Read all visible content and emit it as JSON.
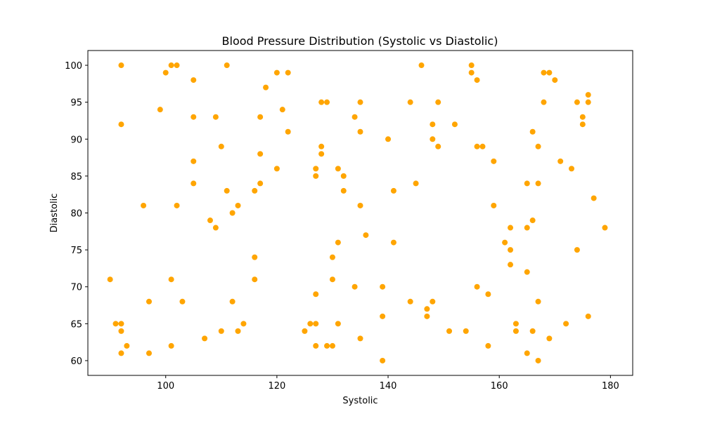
{
  "chart_data": {
    "type": "scatter",
    "title": "Blood Pressure Distribution (Systolic vs Diastolic)",
    "xlabel": "Systolic",
    "ylabel": "Diastolic",
    "xlim": [
      86,
      184
    ],
    "ylim": [
      58,
      102
    ],
    "xticks": [
      100,
      120,
      140,
      160,
      180
    ],
    "yticks": [
      60,
      65,
      70,
      75,
      80,
      85,
      90,
      95,
      100
    ],
    "grid": false,
    "marker_color": "#FFA500",
    "series": [
      {
        "points": [
          [
            92,
            100
          ],
          [
            101,
            100
          ],
          [
            102,
            100
          ],
          [
            111,
            100
          ],
          [
            146,
            100
          ],
          [
            155,
            100
          ],
          [
            100,
            99
          ],
          [
            120,
            99
          ],
          [
            122,
            99
          ],
          [
            155,
            99
          ],
          [
            168,
            99
          ],
          [
            169,
            99
          ],
          [
            105,
            98
          ],
          [
            156,
            98
          ],
          [
            170,
            98
          ],
          [
            118,
            97
          ],
          [
            176,
            96
          ],
          [
            128,
            95
          ],
          [
            129,
            95
          ],
          [
            135,
            95
          ],
          [
            144,
            95
          ],
          [
            149,
            95
          ],
          [
            168,
            95
          ],
          [
            174,
            95
          ],
          [
            176,
            95
          ],
          [
            99,
            94
          ],
          [
            121,
            94
          ],
          [
            105,
            93
          ],
          [
            109,
            93
          ],
          [
            117,
            93
          ],
          [
            134,
            93
          ],
          [
            175,
            93
          ],
          [
            92,
            92
          ],
          [
            148,
            92
          ],
          [
            152,
            92
          ],
          [
            175,
            92
          ],
          [
            122,
            91
          ],
          [
            135,
            91
          ],
          [
            166,
            91
          ],
          [
            140,
            90
          ],
          [
            148,
            90
          ],
          [
            110,
            89
          ],
          [
            128,
            89
          ],
          [
            149,
            89
          ],
          [
            156,
            89
          ],
          [
            157,
            89
          ],
          [
            167,
            89
          ],
          [
            117,
            88
          ],
          [
            128,
            88
          ],
          [
            105,
            87
          ],
          [
            159,
            87
          ],
          [
            171,
            87
          ],
          [
            120,
            86
          ],
          [
            127,
            86
          ],
          [
            131,
            86
          ],
          [
            173,
            86
          ],
          [
            127,
            85
          ],
          [
            132,
            85
          ],
          [
            105,
            84
          ],
          [
            117,
            84
          ],
          [
            145,
            84
          ],
          [
            165,
            84
          ],
          [
            167,
            84
          ],
          [
            111,
            83
          ],
          [
            116,
            83
          ],
          [
            132,
            83
          ],
          [
            141,
            83
          ],
          [
            177,
            82
          ],
          [
            96,
            81
          ],
          [
            102,
            81
          ],
          [
            113,
            81
          ],
          [
            135,
            81
          ],
          [
            159,
            81
          ],
          [
            112,
            80
          ],
          [
            108,
            79
          ],
          [
            166,
            79
          ],
          [
            109,
            78
          ],
          [
            162,
            78
          ],
          [
            165,
            78
          ],
          [
            179,
            78
          ],
          [
            136,
            77
          ],
          [
            131,
            76
          ],
          [
            141,
            76
          ],
          [
            161,
            76
          ],
          [
            162,
            75
          ],
          [
            174,
            75
          ],
          [
            116,
            74
          ],
          [
            130,
            74
          ],
          [
            162,
            73
          ],
          [
            165,
            72
          ],
          [
            90,
            71
          ],
          [
            101,
            71
          ],
          [
            116,
            71
          ],
          [
            130,
            71
          ],
          [
            134,
            70
          ],
          [
            139,
            70
          ],
          [
            156,
            70
          ],
          [
            127,
            69
          ],
          [
            158,
            69
          ],
          [
            97,
            68
          ],
          [
            103,
            68
          ],
          [
            112,
            68
          ],
          [
            144,
            68
          ],
          [
            148,
            68
          ],
          [
            167,
            68
          ],
          [
            147,
            67
          ],
          [
            139,
            66
          ],
          [
            147,
            66
          ],
          [
            176,
            66
          ],
          [
            91,
            65
          ],
          [
            92,
            65
          ],
          [
            114,
            65
          ],
          [
            126,
            65
          ],
          [
            127,
            65
          ],
          [
            131,
            65
          ],
          [
            163,
            65
          ],
          [
            172,
            65
          ],
          [
            92,
            64
          ],
          [
            110,
            64
          ],
          [
            113,
            64
          ],
          [
            125,
            64
          ],
          [
            151,
            64
          ],
          [
            154,
            64
          ],
          [
            163,
            64
          ],
          [
            166,
            64
          ],
          [
            107,
            63
          ],
          [
            135,
            63
          ],
          [
            169,
            63
          ],
          [
            93,
            62
          ],
          [
            101,
            62
          ],
          [
            127,
            62
          ],
          [
            129,
            62
          ],
          [
            130,
            62
          ],
          [
            158,
            62
          ],
          [
            92,
            61
          ],
          [
            97,
            61
          ],
          [
            165,
            61
          ],
          [
            139,
            60
          ],
          [
            167,
            60
          ]
        ]
      }
    ]
  }
}
